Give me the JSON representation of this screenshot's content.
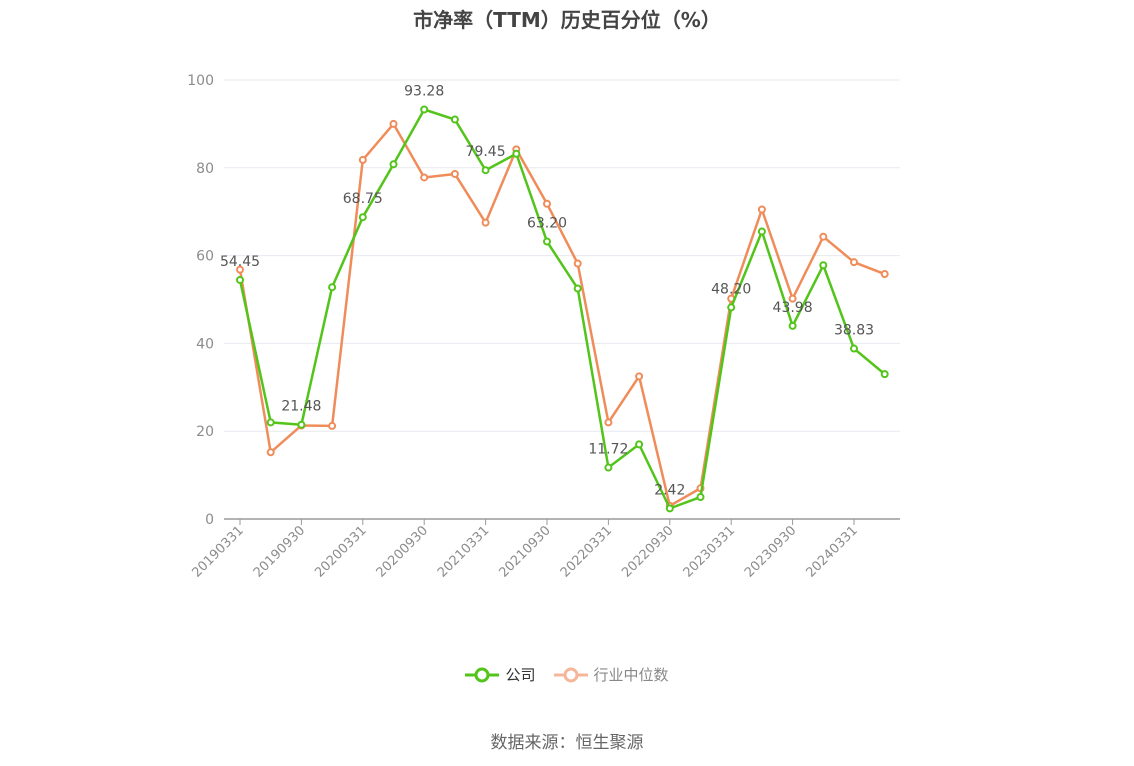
{
  "chart_data": {
    "type": "line",
    "title": "市净率（TTM）历史百分位（%）",
    "source": "数据来源：恒生聚源",
    "x": [
      "20190331",
      "20190630",
      "20190930",
      "20191231",
      "20200331",
      "20200630",
      "20200930",
      "20201231",
      "20210331",
      "20210630",
      "20210930",
      "20211231",
      "20220331",
      "20220630",
      "20220930",
      "20221231",
      "20230331",
      "20230630",
      "20230930",
      "20231231",
      "20240331",
      "20240630"
    ],
    "x_tick_labels": [
      "20190331",
      "20190930",
      "20200331",
      "20200930",
      "20210331",
      "20210930",
      "20220331",
      "20220930",
      "20230331",
      "20230930",
      "20240331"
    ],
    "ylim": [
      0,
      100
    ],
    "yticks": [
      0,
      20,
      40,
      60,
      80,
      100
    ],
    "grid": true,
    "legend_position": "bottom",
    "series": [
      {
        "name": "公司",
        "color": "#52c41a",
        "values": [
          54.45,
          22.0,
          21.48,
          52.8,
          68.75,
          80.8,
          93.28,
          91.0,
          79.45,
          83.2,
          63.2,
          52.5,
          11.72,
          17.0,
          2.42,
          5.0,
          48.2,
          65.5,
          43.98,
          57.8,
          38.83,
          33.0
        ],
        "labels": {
          "0": "54.45",
          "2": "21.48",
          "4": "68.75",
          "6": "93.28",
          "8": "79.45",
          "10": "63.20",
          "12": "11.72",
          "14": "2.42",
          "16": "48.20",
          "18": "43.98",
          "20": "38.83"
        }
      },
      {
        "name": "行业中位数",
        "color": "#f08c5a",
        "values": [
          56.8,
          15.2,
          21.3,
          21.2,
          81.8,
          90.0,
          77.8,
          78.6,
          67.5,
          84.2,
          71.8,
          58.2,
          22.0,
          32.5,
          3.0,
          7.0,
          50.2,
          70.5,
          50.2,
          64.3,
          58.5,
          55.8
        ]
      }
    ]
  }
}
